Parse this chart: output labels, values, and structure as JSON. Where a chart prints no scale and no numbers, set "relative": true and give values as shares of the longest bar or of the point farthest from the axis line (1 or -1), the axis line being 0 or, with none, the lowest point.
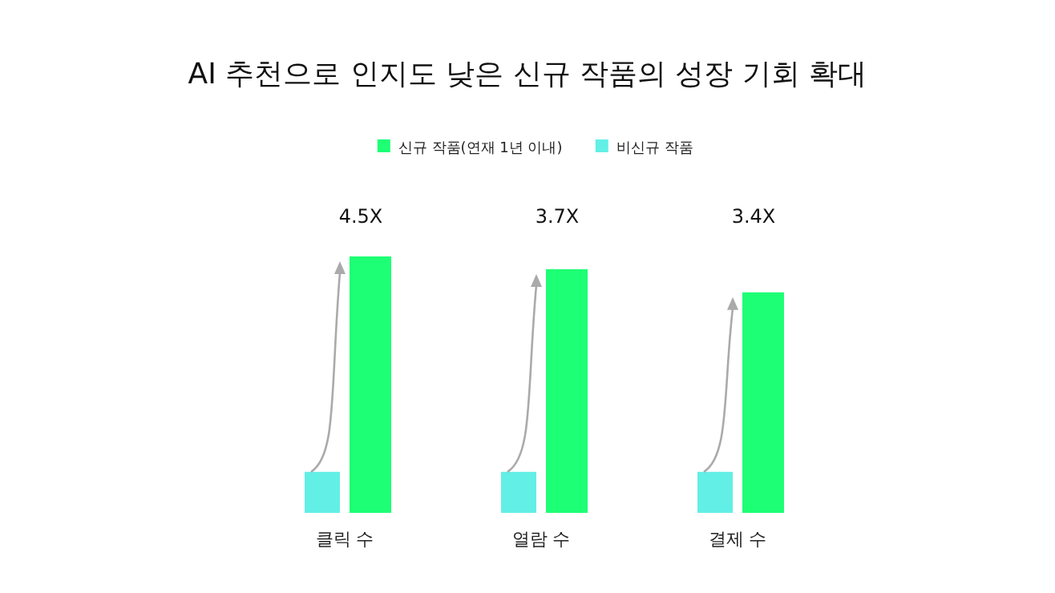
{
  "chart_data": {
    "type": "bar",
    "title": "AI 추천으로 인지도 낮은 신규 작품의 성장 기회 확대",
    "relative": true,
    "categories": [
      "클릭 수",
      "열람 수",
      "결제 수"
    ],
    "series": [
      {
        "name": "신규 작품(연재 1년 이내)",
        "color": "#1dff74",
        "values": [
          1,
          0.95,
          0.86
        ]
      },
      {
        "name": "비신규 작품",
        "color": "#62efe6",
        "values": [
          0.16,
          0.16,
          0.16
        ]
      }
    ],
    "annotations": [
      "4.5X",
      "3.7X",
      "3.4X"
    ],
    "legend": "top",
    "grid": false
  }
}
